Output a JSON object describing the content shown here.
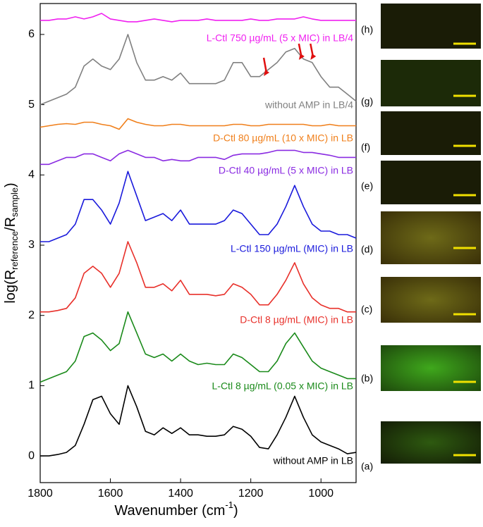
{
  "chart_data": {
    "type": "line",
    "xlabel": [
      "Wavenumber (cm",
      "-1",
      ")"
    ],
    "ylabel": [
      "log(R",
      "reference",
      "/R",
      "sample",
      ")"
    ],
    "xlim": [
      1800,
      900
    ],
    "ylim": [
      -0.38,
      6.44
    ],
    "xticks": [
      1800,
      1600,
      1400,
      1200,
      1000
    ],
    "yticks": [
      0,
      1,
      2,
      3,
      4,
      5,
      6
    ],
    "x": [
      1800,
      1775,
      1750,
      1725,
      1700,
      1675,
      1650,
      1625,
      1600,
      1575,
      1550,
      1525,
      1500,
      1475,
      1450,
      1425,
      1400,
      1375,
      1350,
      1325,
      1300,
      1275,
      1250,
      1225,
      1200,
      1175,
      1150,
      1125,
      1100,
      1075,
      1050,
      1025,
      1000,
      975,
      950,
      925,
      900
    ],
    "series": [
      {
        "name": "without AMP in LB",
        "tag": "(a)",
        "color": "#000000",
        "values": [
          0.0,
          0.0,
          0.02,
          0.05,
          0.15,
          0.45,
          0.8,
          0.85,
          0.6,
          0.45,
          1.0,
          0.7,
          0.35,
          0.3,
          0.4,
          0.32,
          0.4,
          0.3,
          0.3,
          0.28,
          0.28,
          0.3,
          0.42,
          0.38,
          0.28,
          0.12,
          0.1,
          0.3,
          0.55,
          0.85,
          0.55,
          0.3,
          0.2,
          0.15,
          0.1,
          0.03,
          0.05
        ]
      },
      {
        "name": "L-Ctl 8 µg/mL (0.05 x MIC) in LB",
        "tag": "(b)",
        "color": "#1a8a1a",
        "values": [
          1.05,
          1.1,
          1.15,
          1.2,
          1.35,
          1.7,
          1.75,
          1.65,
          1.5,
          1.6,
          2.05,
          1.75,
          1.45,
          1.4,
          1.45,
          1.35,
          1.45,
          1.35,
          1.3,
          1.32,
          1.3,
          1.3,
          1.45,
          1.4,
          1.3,
          1.2,
          1.2,
          1.35,
          1.6,
          1.75,
          1.55,
          1.35,
          1.25,
          1.2,
          1.15,
          1.1,
          1.1
        ]
      },
      {
        "name": "D-Ctl 8 µg/mL (MIC) in LB",
        "tag": "(c)",
        "color": "#e8302a",
        "values": [
          2.05,
          2.05,
          2.07,
          2.1,
          2.25,
          2.6,
          2.7,
          2.6,
          2.4,
          2.6,
          3.05,
          2.75,
          2.4,
          2.4,
          2.45,
          2.35,
          2.5,
          2.3,
          2.3,
          2.3,
          2.28,
          2.3,
          2.45,
          2.4,
          2.3,
          2.15,
          2.15,
          2.3,
          2.5,
          2.75,
          2.45,
          2.25,
          2.15,
          2.1,
          2.1,
          2.05,
          2.05
        ]
      },
      {
        "name": "L-Ctl 150 µg/mL (MIC) in LB",
        "tag": "(d)",
        "color": "#1a1adc",
        "values": [
          3.05,
          3.05,
          3.1,
          3.15,
          3.3,
          3.65,
          3.65,
          3.5,
          3.3,
          3.6,
          4.05,
          3.7,
          3.35,
          3.4,
          3.45,
          3.35,
          3.5,
          3.3,
          3.3,
          3.3,
          3.3,
          3.35,
          3.5,
          3.45,
          3.3,
          3.15,
          3.15,
          3.3,
          3.55,
          3.85,
          3.55,
          3.3,
          3.2,
          3.2,
          3.15,
          3.15,
          3.1
        ]
      },
      {
        "name": "D-Ctl 40 µg/mL (5 x MIC) in LB",
        "tag": "(e)",
        "color": "#8a2be2",
        "values": [
          4.15,
          4.15,
          4.2,
          4.25,
          4.25,
          4.3,
          4.3,
          4.25,
          4.2,
          4.3,
          4.35,
          4.3,
          4.25,
          4.25,
          4.2,
          4.22,
          4.2,
          4.2,
          4.25,
          4.25,
          4.25,
          4.22,
          4.28,
          4.3,
          4.3,
          4.3,
          4.32,
          4.35,
          4.35,
          4.35,
          4.32,
          4.32,
          4.3,
          4.28,
          4.25,
          4.25,
          4.25
        ]
      },
      {
        "name": "D-Ctl 80 µg/mL (10 x MIC) in LB",
        "tag": "(f)",
        "color": "#f07f1a",
        "values": [
          4.68,
          4.7,
          4.72,
          4.73,
          4.72,
          4.75,
          4.75,
          4.72,
          4.7,
          4.65,
          4.8,
          4.75,
          4.72,
          4.7,
          4.7,
          4.72,
          4.72,
          4.7,
          4.7,
          4.7,
          4.7,
          4.7,
          4.72,
          4.72,
          4.7,
          4.7,
          4.72,
          4.72,
          4.72,
          4.72,
          4.72,
          4.7,
          4.7,
          4.72,
          4.7,
          4.7,
          4.7
        ]
      },
      {
        "name": "without AMP in LB/4",
        "tag": "(g)",
        "color": "#808080",
        "values": [
          5.0,
          5.05,
          5.1,
          5.15,
          5.25,
          5.55,
          5.65,
          5.55,
          5.5,
          5.65,
          6.0,
          5.6,
          5.35,
          5.35,
          5.4,
          5.35,
          5.45,
          5.3,
          5.3,
          5.3,
          5.3,
          5.35,
          5.6,
          5.6,
          5.4,
          5.4,
          5.5,
          5.6,
          5.75,
          5.8,
          5.65,
          5.6,
          5.4,
          5.25,
          5.25,
          5.15,
          5.05
        ]
      },
      {
        "name": "L-Ctl 750 µg/mL (5 x MIC) in LB/4",
        "tag": "(h)",
        "color": "#f020f0",
        "values": [
          6.2,
          6.2,
          6.22,
          6.22,
          6.25,
          6.22,
          6.25,
          6.3,
          6.22,
          6.2,
          6.18,
          6.18,
          6.2,
          6.22,
          6.2,
          6.18,
          6.2,
          6.2,
          6.2,
          6.22,
          6.2,
          6.2,
          6.2,
          6.2,
          6.22,
          6.2,
          6.2,
          6.22,
          6.22,
          6.22,
          6.25,
          6.22,
          6.2,
          6.2,
          6.2,
          6.2,
          6.2
        ]
      }
    ],
    "arrow_x": [
      1155,
      1055,
      1022
    ],
    "arrow_color": "#e01010"
  }
}
